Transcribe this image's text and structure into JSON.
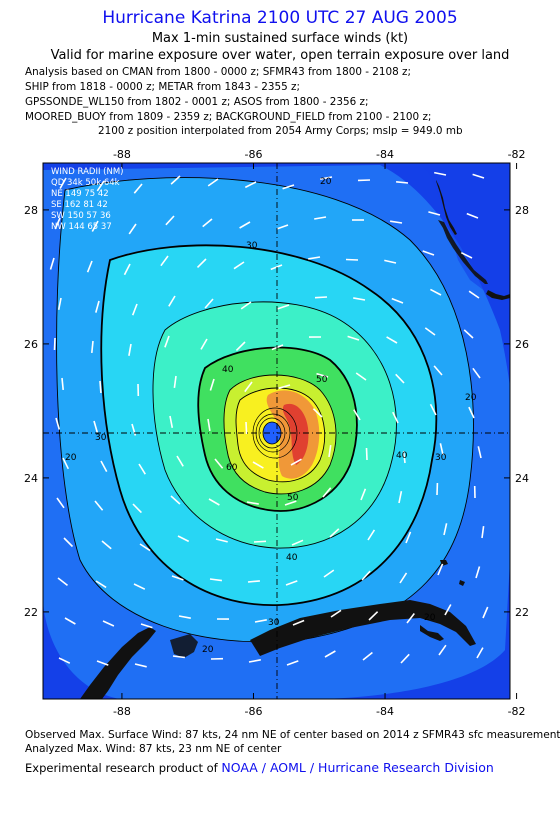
{
  "header": {
    "title": "Hurricane Katrina 2100 UTC 27 AUG 2005",
    "subtitle": "Max 1-min sustained surface winds (kt)",
    "validity": "Valid for marine exposure over water, open terrain exposure over land",
    "analysis_lines": [
      "Analysis based on  CMAN from 1800 - 0000 z;  SFMR43 from 1800 - 2108 z;",
      "SHIP from 1818 - 0000 z;  METAR from 1843 - 2355 z;",
      "GPSSONDE_WL150 from 1802 - 0001 z;  ASOS from 1800 - 2356 z;",
      "MOORED_BUOY from 1809 - 2359 z;  BACKGROUND_FIELD from 2100 - 2100 z;",
      "2100 z position interpolated from 2054 Army Corps; mslp = 949.0 mb"
    ]
  },
  "map": {
    "lon_ticks": [
      "-88",
      "-86",
      "-84",
      "-82"
    ],
    "lat_ticks": [
      "28",
      "26",
      "24",
      "22"
    ],
    "lon_range": [
      -89.2,
      -82.1
    ],
    "lat_range": [
      20.7,
      28.7
    ],
    "center": {
      "lon": -85.5,
      "lat": 24.65
    },
    "contour_labels": [
      "20",
      "20",
      "20",
      "30",
      "30",
      "30",
      "30",
      "40",
      "40",
      "40",
      "50",
      "50",
      "60",
      "20",
      "20"
    ],
    "legend": {
      "title": "WIND RADII (NM)",
      "header": "QD 34k 50k 64k",
      "rows": [
        "NE 149  75  42",
        "SE 162  81  42",
        "SW 150  57  36",
        "NW 144  65  37"
      ]
    },
    "colors": {
      "outer": "#1440e8",
      "level20": "#1f6ff4",
      "level30": "#22a6f8",
      "level40": "#28d6f4",
      "level50": "#3cf0c8",
      "level60": "#40e060",
      "level70": "#c8f030",
      "level75": "#f8f020",
      "level80": "#f09838",
      "level85": "#e04030",
      "eye": "#2060ff",
      "land": "#111111"
    }
  },
  "footer": {
    "observed": "Observed Max. Surface Wind: 87 kts, 24 nm NE of center based on 2014 z SFMR43 sfc measurement",
    "analyzed": "Analyzed Max. Wind: 87 kts, 23 nm NE of center",
    "credit_prefix": "Experimental research product of",
    "credit_org": "NOAA / AOML / Hurricane Research Division"
  }
}
